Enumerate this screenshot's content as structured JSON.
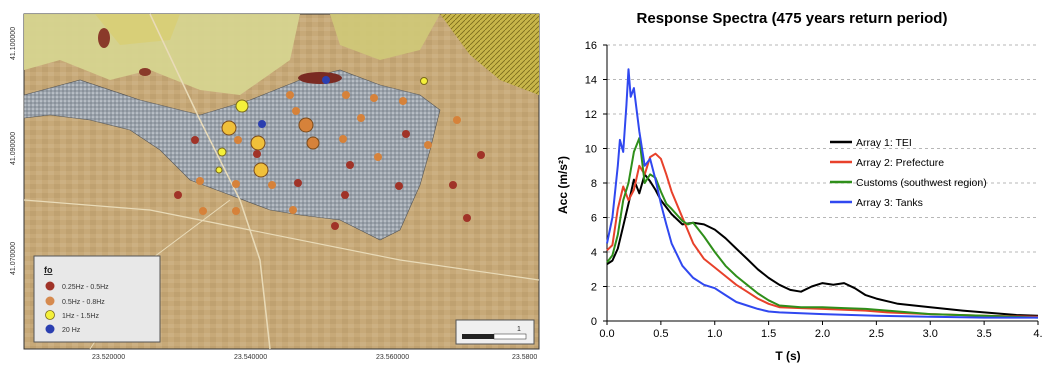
{
  "map": {
    "left_coord": "41.100000",
    "left_coord_2": "41.090000",
    "left_coord_3": "41.070000",
    "bottom_coords": [
      "23.520000",
      "23.540000",
      "23.560000",
      "23.5800"
    ],
    "legend": {
      "title": "fo",
      "items": [
        {
          "label": "0.25Hz - 0.5Hz",
          "color": "#a03328"
        },
        {
          "label": "0.5Hz - 0.8Hz",
          "color": "#d68a4e"
        },
        {
          "label": "1Hz - 1.5Hz",
          "color": "#f4f03a"
        },
        {
          "label": "20 Hz",
          "color": "#2b3fb0"
        }
      ]
    },
    "scale_label": "1",
    "colors": {
      "bg": "#c9b07e",
      "urban": "#8d97a3",
      "green": "#d4d08a"
    }
  },
  "chart_data": {
    "type": "line",
    "title": "Response Spectra (475 years return period)",
    "xlabel": "T (s)",
    "ylabel": "Acc (m/s²)",
    "xlim": [
      0,
      4.0
    ],
    "ylim": [
      0,
      16
    ],
    "xticks": [
      "0.0",
      "0.5",
      "1.0",
      "1.5",
      "2.0",
      "2.5",
      "3.0",
      "3.5",
      "4."
    ],
    "xtick_values": [
      0,
      0.5,
      1.0,
      1.5,
      2.0,
      2.5,
      3.0,
      3.5,
      4.0
    ],
    "yticks": [
      "0",
      "2",
      "4",
      "6",
      "8",
      "10",
      "12",
      "14",
      "16"
    ],
    "ytick_values": [
      0,
      2,
      4,
      6,
      8,
      10,
      12,
      14,
      16
    ],
    "grid": "horizontal dashed",
    "legend_position": "center-right",
    "series": [
      {
        "name": "Array 1: TEI",
        "color": "#000000",
        "x": [
          0,
          0.05,
          0.1,
          0.15,
          0.2,
          0.25,
          0.3,
          0.35,
          0.4,
          0.45,
          0.5,
          0.6,
          0.7,
          0.8,
          0.9,
          1.0,
          1.1,
          1.2,
          1.3,
          1.4,
          1.5,
          1.6,
          1.7,
          1.8,
          1.9,
          2.0,
          2.1,
          2.2,
          2.3,
          2.4,
          2.5,
          2.7,
          3.0,
          3.3,
          3.5,
          3.8,
          4.0
        ],
        "values": [
          3.3,
          3.5,
          4.2,
          5.5,
          6.8,
          8.2,
          7.4,
          8.5,
          8.1,
          7.6,
          7.0,
          6.2,
          5.6,
          5.7,
          5.6,
          5.3,
          4.8,
          4.2,
          3.6,
          3.0,
          2.5,
          2.1,
          1.8,
          1.7,
          2.0,
          2.2,
          2.1,
          2.2,
          1.9,
          1.5,
          1.3,
          1.0,
          0.8,
          0.6,
          0.5,
          0.35,
          0.3
        ]
      },
      {
        "name": "Array 2: Prefecture",
        "color": "#e8412b",
        "x": [
          0,
          0.05,
          0.1,
          0.15,
          0.2,
          0.25,
          0.3,
          0.35,
          0.4,
          0.45,
          0.5,
          0.55,
          0.6,
          0.7,
          0.8,
          0.9,
          1.0,
          1.1,
          1.2,
          1.3,
          1.4,
          1.5,
          1.6,
          1.8,
          2.0,
          2.2,
          2.4,
          2.6,
          3.0,
          3.5,
          4.0
        ],
        "values": [
          4.1,
          4.4,
          6.5,
          7.8,
          7.0,
          7.6,
          9.0,
          8.5,
          9.5,
          9.7,
          9.4,
          8.5,
          7.5,
          6.0,
          4.5,
          3.6,
          3.1,
          2.6,
          2.1,
          1.7,
          1.3,
          1.0,
          0.8,
          0.75,
          0.7,
          0.65,
          0.6,
          0.5,
          0.4,
          0.3,
          0.25
        ]
      },
      {
        "name": "Customs (southwest region)",
        "color": "#2f8f1a",
        "x": [
          0,
          0.05,
          0.1,
          0.15,
          0.2,
          0.25,
          0.3,
          0.35,
          0.4,
          0.45,
          0.5,
          0.55,
          0.6,
          0.7,
          0.75,
          0.8,
          0.9,
          1.0,
          1.1,
          1.2,
          1.3,
          1.4,
          1.5,
          1.6,
          1.8,
          2.0,
          2.2,
          2.4,
          2.6,
          3.0,
          3.5,
          4.0
        ],
        "values": [
          3.4,
          3.8,
          5.0,
          7.0,
          8.0,
          9.8,
          10.6,
          8.0,
          8.5,
          8.3,
          7.5,
          6.8,
          6.5,
          5.8,
          5.6,
          5.7,
          4.9,
          4.0,
          3.2,
          2.6,
          2.1,
          1.6,
          1.2,
          0.9,
          0.8,
          0.8,
          0.75,
          0.7,
          0.6,
          0.4,
          0.3,
          0.2
        ]
      },
      {
        "name": "Array 3: Tanks",
        "color": "#3048f0",
        "x": [
          0,
          0.05,
          0.1,
          0.12,
          0.15,
          0.18,
          0.2,
          0.22,
          0.25,
          0.3,
          0.35,
          0.4,
          0.45,
          0.5,
          0.55,
          0.6,
          0.7,
          0.8,
          0.9,
          1.0,
          1.1,
          1.2,
          1.3,
          1.4,
          1.5,
          1.6,
          1.8,
          2.0,
          2.5,
          3.0,
          3.5,
          4.0
        ],
        "values": [
          4.5,
          6.0,
          9.0,
          10.5,
          9.8,
          12.5,
          14.6,
          13.0,
          13.5,
          11.0,
          9.0,
          9.4,
          8.2,
          6.8,
          5.6,
          4.5,
          3.2,
          2.5,
          2.1,
          1.9,
          1.5,
          1.1,
          0.9,
          0.7,
          0.55,
          0.5,
          0.45,
          0.4,
          0.3,
          0.25,
          0.2,
          0.2
        ]
      }
    ]
  }
}
